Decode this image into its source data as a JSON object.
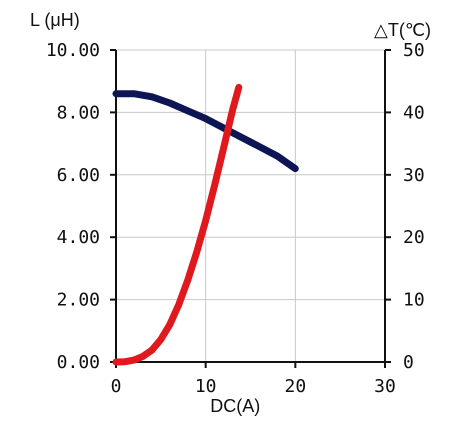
{
  "chart_data": {
    "type": "line",
    "title": "",
    "xlabel": "DC(A)",
    "ylabel_left": "L (μH)",
    "ylabel_right": "△T(℃)",
    "xlim": [
      0,
      30
    ],
    "ylim_left": [
      0,
      10
    ],
    "ylim_right": [
      0,
      50
    ],
    "grid": true,
    "legend": "none",
    "x_ticks": [
      "0",
      "10",
      "20",
      "30"
    ],
    "y_left_ticks": [
      "0.00",
      "2.00",
      "4.00",
      "6.00",
      "8.00",
      "10.00"
    ],
    "y_right_ticks": [
      "0",
      "10",
      "20",
      "30",
      "40",
      "50"
    ],
    "series": [
      {
        "axis": "left",
        "color": "#0d1554",
        "x": [
          0,
          2,
          4,
          6,
          8,
          10,
          12,
          14,
          16,
          18,
          20
        ],
        "y": [
          8.6,
          8.6,
          8.5,
          8.3,
          8.05,
          7.8,
          7.5,
          7.2,
          6.9,
          6.6,
          6.2
        ]
      },
      {
        "axis": "right",
        "color": "#e0191e",
        "x": [
          0,
          1,
          2,
          3,
          4,
          5,
          6,
          7,
          8,
          9,
          10,
          11,
          12,
          13,
          13.7
        ],
        "y": [
          0,
          0.05,
          0.3,
          0.9,
          1.9,
          3.6,
          6,
          9.2,
          13.1,
          17.6,
          22.7,
          28.3,
          34.3,
          40.4,
          44
        ]
      }
    ]
  }
}
